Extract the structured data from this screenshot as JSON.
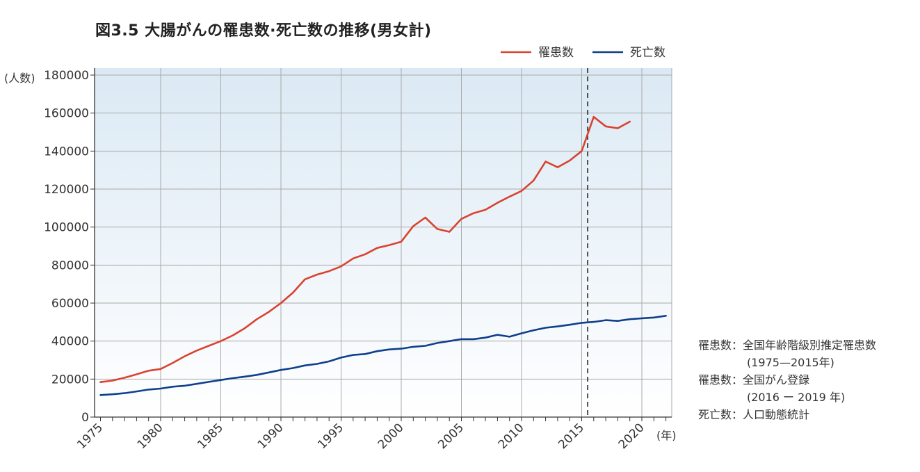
{
  "title": "図3.5 大腸がんの罹患数·死亡数の推移(男女計)",
  "notes": [
    "罹患数：全国年齢階級別推定罹患数",
    "(1975—2015年)",
    "罹患数：全国がん登録",
    "(2016 ー 2019 年)",
    "死亡数：人口動態統計"
  ],
  "colors": {
    "incidence": "#d9432f",
    "mortality": "#0f3f8c",
    "grid": "#a9a9a9",
    "background_top": "#dbe9f4",
    "background_bottom": "#ffffff"
  },
  "chart_data": {
    "type": "line",
    "xlabel": "(年)",
    "ylabel": "(人数)",
    "xlim": [
      1975,
      2022
    ],
    "ylim": [
      0,
      180000
    ],
    "x_ticks": [
      1975,
      1980,
      1985,
      1990,
      1995,
      2000,
      2005,
      2010,
      2015,
      2020
    ],
    "y_ticks": [
      0,
      20000,
      40000,
      60000,
      80000,
      100000,
      120000,
      140000,
      160000,
      180000
    ],
    "grid": true,
    "legend_position": "top-right",
    "reference_line": {
      "x": 2015.5,
      "style": "dashed"
    },
    "series": [
      {
        "name": "罹患数",
        "x": [
          1975,
          1976,
          1977,
          1978,
          1979,
          1980,
          1981,
          1982,
          1983,
          1984,
          1985,
          1986,
          1987,
          1988,
          1989,
          1990,
          1991,
          1992,
          1993,
          1994,
          1995,
          1996,
          1997,
          1998,
          1999,
          2000,
          2001,
          2002,
          2003,
          2004,
          2005,
          2006,
          2007,
          2008,
          2009,
          2010,
          2011,
          2012,
          2013,
          2014,
          2015,
          2016,
          2017,
          2018,
          2019
        ],
        "values": [
          18400,
          19200,
          20700,
          22500,
          24400,
          25300,
          28500,
          32000,
          35000,
          37500,
          40000,
          43000,
          46800,
          51500,
          55400,
          60000,
          65500,
          72500,
          75000,
          76800,
          79300,
          83500,
          85700,
          89000,
          90500,
          92300,
          100500,
          105000,
          99000,
          97500,
          104300,
          107300,
          109100,
          112800,
          116000,
          119000,
          124500,
          134500,
          131500,
          135000,
          140000,
          158000,
          153000,
          152000,
          155500
        ]
      },
      {
        "name": "死亡数",
        "x": [
          1975,
          1976,
          1977,
          1978,
          1979,
          1980,
          1981,
          1982,
          1983,
          1984,
          1985,
          1986,
          1987,
          1988,
          1989,
          1990,
          1991,
          1992,
          1993,
          1994,
          1995,
          1996,
          1997,
          1998,
          1999,
          2000,
          2001,
          2002,
          2003,
          2004,
          2005,
          2006,
          2007,
          2008,
          2009,
          2010,
          2011,
          2012,
          2013,
          2014,
          2015,
          2016,
          2017,
          2018,
          2019,
          2020,
          2021,
          2022
        ],
        "values": [
          11600,
          12000,
          12600,
          13500,
          14500,
          15000,
          16000,
          16500,
          17500,
          18500,
          19500,
          20500,
          21300,
          22200,
          23500,
          24800,
          25800,
          27200,
          28000,
          29300,
          31300,
          32700,
          33200,
          34700,
          35600,
          36000,
          37000,
          37500,
          39000,
          40000,
          41000,
          41000,
          41800,
          43300,
          42300,
          44100,
          45700,
          47000,
          47700,
          48600,
          49600,
          50100,
          51000,
          50600,
          51500,
          52000,
          52400,
          53300
        ]
      }
    ]
  }
}
